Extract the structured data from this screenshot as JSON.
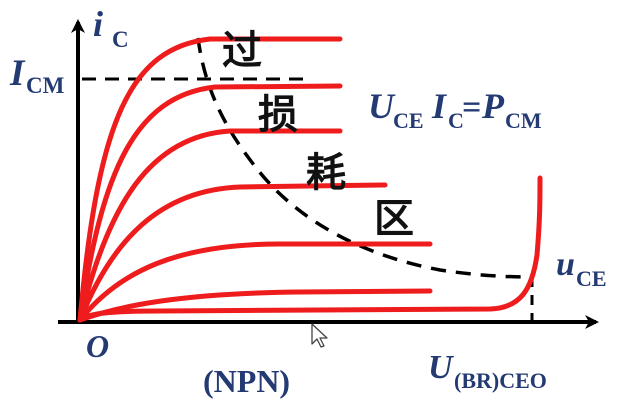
{
  "colors": {
    "curve": "#ee1c1c",
    "axis": "#000000",
    "label": "#243a73",
    "boundary": "#000000",
    "region_text": "#111111"
  },
  "labels": {
    "y_axis_main": "i",
    "y_axis_sub": "C",
    "x_axis_main": "u",
    "x_axis_sub": "CE",
    "icm_main": "I",
    "icm_sub": "CM",
    "origin": "O",
    "breakdown_main": "U",
    "breakdown_sub": "(BR)CEO",
    "device_type": "(NPN)",
    "equation": {
      "u": "U",
      "u_sub": "CE",
      "i": "I",
      "i_sub": "C",
      "eq": "=",
      "p": "P",
      "p_sub": "CM"
    },
    "region_chars": [
      "过",
      "损",
      "耗",
      "区"
    ]
  },
  "icons": {
    "cursor": "mouse-pointer-icon"
  }
}
